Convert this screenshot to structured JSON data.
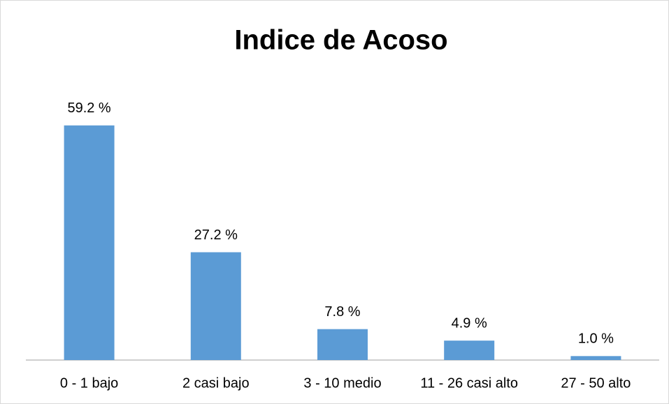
{
  "chart_data": {
    "type": "bar",
    "title": "Indice de Acoso",
    "categories": [
      "0 - 1 bajo",
      "2 casi bajo",
      "3 - 10 medio",
      "11 - 26 casi alto",
      "27 - 50 alto"
    ],
    "values": [
      59.2,
      27.2,
      7.8,
      4.9,
      1.0
    ],
    "value_labels": [
      "59.2 %",
      "27.2 %",
      "7.8 %",
      "4.9 %",
      "1.0 %"
    ],
    "color": "#5b9bd5"
  }
}
